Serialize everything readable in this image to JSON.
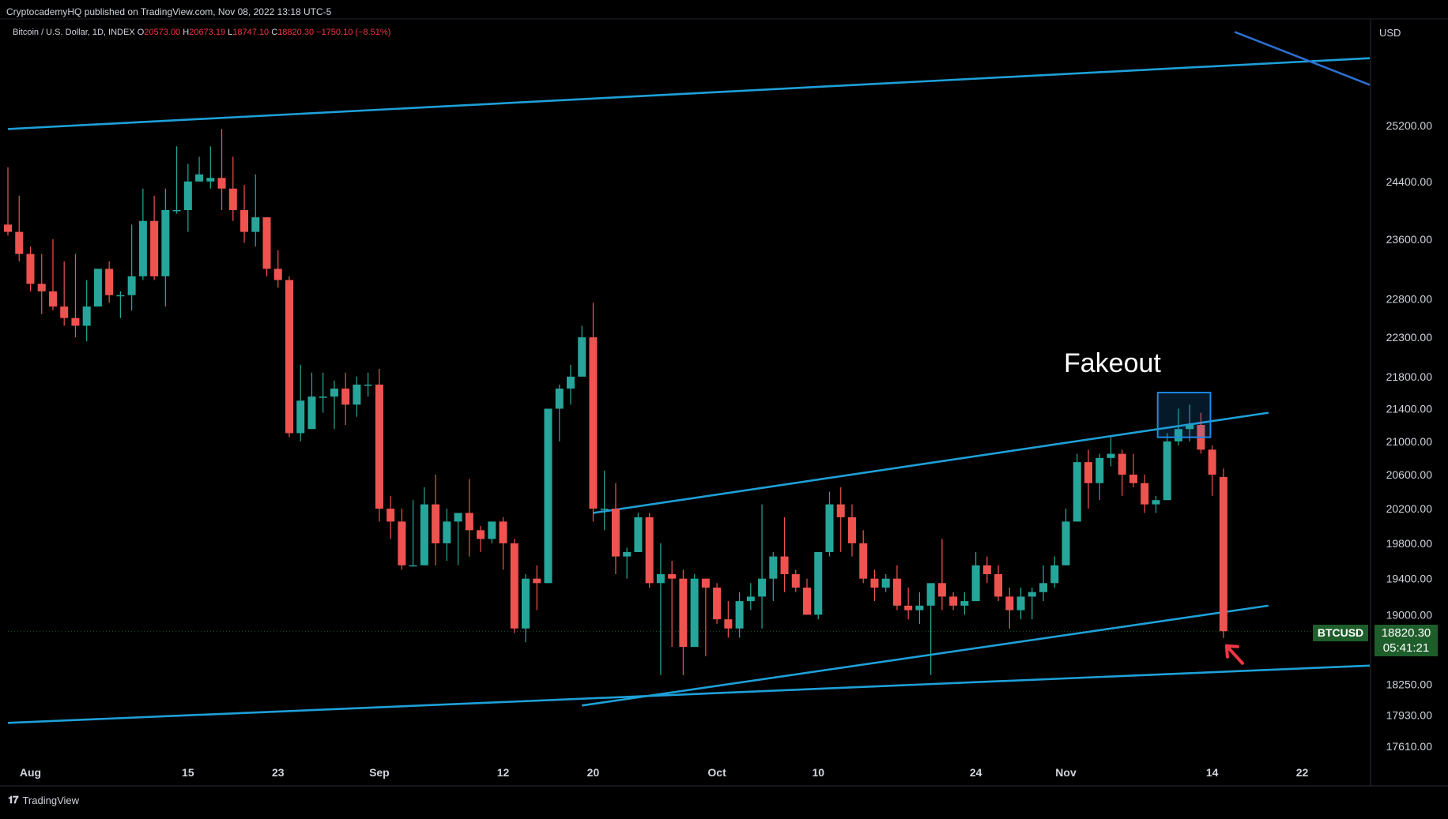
{
  "header": {
    "published": "CryptocademyHQ published on TradingView.com, Nov 08, 2022 13:18 UTC-5",
    "symbol": "Bitcoin / U.S. Dollar, 1D, INDEX",
    "open_label": "O",
    "open": "20573.00",
    "high_label": "H",
    "high": "20673.19",
    "low_label": "L",
    "low": "18747.10",
    "close_label": "C",
    "close": "18820.30",
    "change": "−1750.10 (−8.51%)"
  },
  "price_axis": {
    "currency": "USD"
  },
  "annotation": {
    "fakeout": "Fakeout"
  },
  "last_price": {
    "ticker": "BTCUSD",
    "price": "18820.30",
    "countdown": "05:41:21"
  },
  "footer": {
    "brand": "TradingView",
    "logo_glyph": "𝟏𝟕"
  },
  "colors": {
    "background": "#000000",
    "up": "#26a69a",
    "down": "#ef5350",
    "trendline": "#1ea0d8",
    "secondary_line": "#2e6fd1",
    "highlight_box": "#1e88e5",
    "arrow": "#f23645",
    "axis_text": "#d1d4dc",
    "badge": "#1e5e2a"
  },
  "chart_data": {
    "type": "candlestick",
    "symbol": "BTCUSD",
    "interval": "1D",
    "y_axis_scale": "log",
    "ylim": [
      17450,
      26800
    ],
    "y_ticks": [
      17610,
      17930,
      18250,
      19000,
      19400,
      19800,
      20200,
      20600,
      21000,
      21400,
      21800,
      22300,
      22800,
      23600,
      24400,
      25200
    ],
    "y_tick_labels": [
      "17610.00",
      "17930.00",
      "18250.00",
      "19000.00",
      "19400.00",
      "19800.00",
      "20200.00",
      "20600.00",
      "21000.00",
      "21400.00",
      "21800.00",
      "22300.00",
      "22800.00",
      "23600.00",
      "24400.00",
      "25200.00"
    ],
    "x_ticks": [
      {
        "date": "2022-08-01",
        "label": "Aug"
      },
      {
        "date": "2022-08-15",
        "label": "15"
      },
      {
        "date": "2022-08-23",
        "label": "23"
      },
      {
        "date": "2022-09-01",
        "label": "Sep"
      },
      {
        "date": "2022-09-12",
        "label": "12"
      },
      {
        "date": "2022-09-20",
        "label": "20"
      },
      {
        "date": "2022-10-01",
        "label": "Oct"
      },
      {
        "date": "2022-10-10",
        "label": "10"
      },
      {
        "date": "2022-10-24",
        "label": "24"
      },
      {
        "date": "2022-11-01",
        "label": "Nov"
      },
      {
        "date": "2022-11-14",
        "label": "14"
      },
      {
        "date": "2022-11-22",
        "label": "22"
      }
    ],
    "xlim": [
      "2022-07-30",
      "2022-11-28"
    ],
    "candles": [
      {
        "date": "2022-07-30",
        "open": 23800,
        "high": 24600,
        "low": 23650,
        "close": 23700
      },
      {
        "date": "2022-07-31",
        "open": 23700,
        "high": 24200,
        "low": 23300,
        "close": 23400
      },
      {
        "date": "2022-08-01",
        "open": 23400,
        "high": 23500,
        "low": 22900,
        "close": 23000
      },
      {
        "date": "2022-08-02",
        "open": 23000,
        "high": 23400,
        "low": 22600,
        "close": 22900
      },
      {
        "date": "2022-08-03",
        "open": 22900,
        "high": 23600,
        "low": 22650,
        "close": 22700
      },
      {
        "date": "2022-08-04",
        "open": 22700,
        "high": 23300,
        "low": 22450,
        "close": 22550
      },
      {
        "date": "2022-08-05",
        "open": 22550,
        "high": 23400,
        "low": 22300,
        "close": 22450
      },
      {
        "date": "2022-08-06",
        "open": 22450,
        "high": 23050,
        "low": 22250,
        "close": 22700
      },
      {
        "date": "2022-08-07",
        "open": 22700,
        "high": 23200,
        "low": 22700,
        "close": 23200
      },
      {
        "date": "2022-08-08",
        "open": 23200,
        "high": 23300,
        "low": 22750,
        "close": 22850
      },
      {
        "date": "2022-08-09",
        "open": 22850,
        "high": 22900,
        "low": 22550,
        "close": 22850
      },
      {
        "date": "2022-08-10",
        "open": 22850,
        "high": 23800,
        "low": 22650,
        "close": 23100
      },
      {
        "date": "2022-08-11",
        "open": 23100,
        "high": 24300,
        "low": 23050,
        "close": 23850
      },
      {
        "date": "2022-08-12",
        "open": 23850,
        "high": 24200,
        "low": 23050,
        "close": 23100
      },
      {
        "date": "2022-08-13",
        "open": 23100,
        "high": 24300,
        "low": 22700,
        "close": 24000
      },
      {
        "date": "2022-08-14",
        "open": 24000,
        "high": 24900,
        "low": 23950,
        "close": 24000
      },
      {
        "date": "2022-08-15",
        "open": 24000,
        "high": 24650,
        "low": 23700,
        "close": 24400
      },
      {
        "date": "2022-08-16",
        "open": 24400,
        "high": 24750,
        "low": 24400,
        "close": 24500
      },
      {
        "date": "2022-08-17",
        "open": 24400,
        "high": 24900,
        "low": 24300,
        "close": 24450
      },
      {
        "date": "2022-08-18",
        "open": 24450,
        "high": 25150,
        "low": 24000,
        "close": 24300
      },
      {
        "date": "2022-08-19",
        "open": 24300,
        "high": 24750,
        "low": 23850,
        "close": 24000
      },
      {
        "date": "2022-08-20",
        "open": 24000,
        "high": 24350,
        "low": 23550,
        "close": 23700
      },
      {
        "date": "2022-08-21",
        "open": 23700,
        "high": 24500,
        "low": 23500,
        "close": 23900
      },
      {
        "date": "2022-08-22",
        "open": 23900,
        "high": 23900,
        "low": 23100,
        "close": 23200
      },
      {
        "date": "2022-08-23",
        "open": 23200,
        "high": 23450,
        "low": 22950,
        "close": 23050
      },
      {
        "date": "2022-08-24",
        "open": 23050,
        "high": 23100,
        "low": 21050,
        "close": 21100
      },
      {
        "date": "2022-08-25",
        "open": 21100,
        "high": 21950,
        "low": 21000,
        "close": 21500
      },
      {
        "date": "2022-08-26",
        "open": 21150,
        "high": 21850,
        "low": 21150,
        "close": 21550
      },
      {
        "date": "2022-08-27",
        "open": 21550,
        "high": 21850,
        "low": 21350,
        "close": 21550
      },
      {
        "date": "2022-08-28",
        "open": 21550,
        "high": 21750,
        "low": 21150,
        "close": 21650
      },
      {
        "date": "2022-08-29",
        "open": 21650,
        "high": 21850,
        "low": 21200,
        "close": 21450
      },
      {
        "date": "2022-08-30",
        "open": 21450,
        "high": 21800,
        "low": 21300,
        "close": 21700
      },
      {
        "date": "2022-08-31",
        "open": 21700,
        "high": 21850,
        "low": 21550,
        "close": 21700
      },
      {
        "date": "2022-09-01",
        "open": 21700,
        "high": 21900,
        "low": 20050,
        "close": 20200
      },
      {
        "date": "2022-09-02",
        "open": 20200,
        "high": 20350,
        "low": 19850,
        "close": 20050
      },
      {
        "date": "2022-09-03",
        "open": 20050,
        "high": 20200,
        "low": 19500,
        "close": 19550
      },
      {
        "date": "2022-09-04",
        "open": 19550,
        "high": 20300,
        "low": 19550,
        "close": 19550
      },
      {
        "date": "2022-09-05",
        "open": 19550,
        "high": 20450,
        "low": 19550,
        "close": 20250
      },
      {
        "date": "2022-09-06",
        "open": 20250,
        "high": 20600,
        "low": 19550,
        "close": 19800
      },
      {
        "date": "2022-09-07",
        "open": 19800,
        "high": 20200,
        "low": 19600,
        "close": 20050
      },
      {
        "date": "2022-09-08",
        "open": 20050,
        "high": 20150,
        "low": 19550,
        "close": 20150
      },
      {
        "date": "2022-09-09",
        "open": 20150,
        "high": 20550,
        "low": 19650,
        "close": 19950
      },
      {
        "date": "2022-09-10",
        "open": 19950,
        "high": 20000,
        "low": 19700,
        "close": 19850
      },
      {
        "date": "2022-09-11",
        "open": 19850,
        "high": 20050,
        "low": 19800,
        "close": 20050
      },
      {
        "date": "2022-09-12",
        "open": 20050,
        "high": 20100,
        "low": 19500,
        "close": 19800
      },
      {
        "date": "2022-09-13",
        "open": 19800,
        "high": 19850,
        "low": 18800,
        "close": 18850
      },
      {
        "date": "2022-09-14",
        "open": 18850,
        "high": 19450,
        "low": 18700,
        "close": 19400
      },
      {
        "date": "2022-09-15",
        "open": 19400,
        "high": 19550,
        "low": 19050,
        "close": 19350
      },
      {
        "date": "2022-09-16",
        "open": 19350,
        "high": 21400,
        "low": 19350,
        "close": 21400
      },
      {
        "date": "2022-09-17",
        "open": 21400,
        "high": 21700,
        "low": 21000,
        "close": 21650
      },
      {
        "date": "2022-09-18",
        "open": 21650,
        "high": 21950,
        "low": 21450,
        "close": 21800
      },
      {
        "date": "2022-09-19",
        "open": 21800,
        "high": 22450,
        "low": 21800,
        "close": 22300
      },
      {
        "date": "2022-09-20",
        "open": 22300,
        "high": 22750,
        "low": 20050,
        "close": 20200
      },
      {
        "date": "2022-09-21",
        "open": 20200,
        "high": 20650,
        "low": 19950,
        "close": 20200
      },
      {
        "date": "2022-09-22",
        "open": 20200,
        "high": 20500,
        "low": 19450,
        "close": 19650
      },
      {
        "date": "2022-09-23",
        "open": 19650,
        "high": 19750,
        "low": 19400,
        "close": 19700
      },
      {
        "date": "2022-09-24",
        "open": 19700,
        "high": 20150,
        "low": 19700,
        "close": 20100
      },
      {
        "date": "2022-09-25",
        "open": 20100,
        "high": 20150,
        "low": 19300,
        "close": 19350
      },
      {
        "date": "2022-09-26",
        "open": 19350,
        "high": 19800,
        "low": 18350,
        "close": 19450
      },
      {
        "date": "2022-09-27",
        "open": 19450,
        "high": 19600,
        "low": 18650,
        "close": 19400
      },
      {
        "date": "2022-09-28",
        "open": 19400,
        "high": 19500,
        "low": 18350,
        "close": 18650
      },
      {
        "date": "2022-09-29",
        "open": 18650,
        "high": 19450,
        "low": 18650,
        "close": 19400
      },
      {
        "date": "2022-09-30",
        "open": 19400,
        "high": 19400,
        "low": 18550,
        "close": 19300
      },
      {
        "date": "2022-10-01",
        "open": 19300,
        "high": 19350,
        "low": 18900,
        "close": 18950
      },
      {
        "date": "2022-10-02",
        "open": 18950,
        "high": 19150,
        "low": 18750,
        "close": 18850
      },
      {
        "date": "2022-10-03",
        "open": 18850,
        "high": 19250,
        "low": 18750,
        "close": 19150
      },
      {
        "date": "2022-10-04",
        "open": 19150,
        "high": 19350,
        "low": 19050,
        "close": 19200
      },
      {
        "date": "2022-10-05",
        "open": 19200,
        "high": 20250,
        "low": 18850,
        "close": 19400
      },
      {
        "date": "2022-10-06",
        "open": 19400,
        "high": 19700,
        "low": 19150,
        "close": 19650
      },
      {
        "date": "2022-10-07",
        "open": 19650,
        "high": 20100,
        "low": 19250,
        "close": 19450
      },
      {
        "date": "2022-10-08",
        "open": 19450,
        "high": 19500,
        "low": 19250,
        "close": 19300
      },
      {
        "date": "2022-10-09",
        "open": 19300,
        "high": 19400,
        "low": 19000,
        "close": 19000
      },
      {
        "date": "2022-10-10",
        "open": 19000,
        "high": 19700,
        "low": 18950,
        "close": 19700
      },
      {
        "date": "2022-10-11",
        "open": 19700,
        "high": 20400,
        "low": 19650,
        "close": 20250
      },
      {
        "date": "2022-10-12",
        "open": 20250,
        "high": 20450,
        "low": 19700,
        "close": 20100
      },
      {
        "date": "2022-10-13",
        "open": 20100,
        "high": 20250,
        "low": 19650,
        "close": 19800
      },
      {
        "date": "2022-10-14",
        "open": 19800,
        "high": 19950,
        "low": 19350,
        "close": 19400
      },
      {
        "date": "2022-10-15",
        "open": 19400,
        "high": 19500,
        "low": 19150,
        "close": 19300
      },
      {
        "date": "2022-10-16",
        "open": 19300,
        "high": 19450,
        "low": 19250,
        "close": 19400
      },
      {
        "date": "2022-10-17",
        "open": 19400,
        "high": 19550,
        "low": 19050,
        "close": 19100
      },
      {
        "date": "2022-10-18",
        "open": 19100,
        "high": 19300,
        "low": 18950,
        "close": 19050
      },
      {
        "date": "2022-10-19",
        "open": 19050,
        "high": 19250,
        "low": 18900,
        "close": 19100
      },
      {
        "date": "2022-10-20",
        "open": 19100,
        "high": 19350,
        "low": 18350,
        "close": 19350
      },
      {
        "date": "2022-10-21",
        "open": 19350,
        "high": 19850,
        "low": 19050,
        "close": 19200
      },
      {
        "date": "2022-10-22",
        "open": 19200,
        "high": 19250,
        "low": 19050,
        "close": 19100
      },
      {
        "date": "2022-10-23",
        "open": 19100,
        "high": 19250,
        "low": 19000,
        "close": 19150
      },
      {
        "date": "2022-10-24",
        "open": 19150,
        "high": 19700,
        "low": 19150,
        "close": 19550
      },
      {
        "date": "2022-10-25",
        "open": 19550,
        "high": 19650,
        "low": 19350,
        "close": 19450
      },
      {
        "date": "2022-10-26",
        "open": 19450,
        "high": 19550,
        "low": 19150,
        "close": 19200
      },
      {
        "date": "2022-10-27",
        "open": 19200,
        "high": 19300,
        "low": 18850,
        "close": 19050
      },
      {
        "date": "2022-10-28",
        "open": 19050,
        "high": 19300,
        "low": 18950,
        "close": 19200
      },
      {
        "date": "2022-10-29",
        "open": 19200,
        "high": 19300,
        "low": 18950,
        "close": 19250
      },
      {
        "date": "2022-10-30",
        "open": 19250,
        "high": 19550,
        "low": 19150,
        "close": 19350
      },
      {
        "date": "2022-10-31",
        "open": 19350,
        "high": 19650,
        "low": 19300,
        "close": 19550
      },
      {
        "date": "2022-11-01",
        "open": 19550,
        "high": 20200,
        "low": 19550,
        "close": 20050
      },
      {
        "date": "2022-11-02",
        "open": 20050,
        "high": 20850,
        "low": 20050,
        "close": 20750
      },
      {
        "date": "2022-11-03",
        "open": 20750,
        "high": 20900,
        "low": 20200,
        "close": 20500
      },
      {
        "date": "2022-11-04",
        "open": 20500,
        "high": 20850,
        "low": 20300,
        "close": 20800
      },
      {
        "date": "2022-11-05",
        "open": 20800,
        "high": 21050,
        "low": 20700,
        "close": 20850
      },
      {
        "date": "2022-11-06",
        "open": 20850,
        "high": 20900,
        "low": 20350,
        "close": 20600
      },
      {
        "date": "2022-11-07",
        "open": 20600,
        "high": 20850,
        "low": 20450,
        "close": 20500
      },
      {
        "date": "2022-11-08",
        "open": 20500,
        "high": 20600,
        "low": 20150,
        "close": 20250
      },
      {
        "date": "2022-11-09",
        "open": 20250,
        "high": 20350,
        "low": 20150,
        "close": 20300
      },
      {
        "date": "2022-11-10",
        "open": 20300,
        "high": 21100,
        "low": 20300,
        "close": 21000
      },
      {
        "date": "2022-11-11",
        "open": 21000,
        "high": 21400,
        "low": 20950,
        "close": 21150
      },
      {
        "date": "2022-11-12",
        "open": 21150,
        "high": 21450,
        "low": 21000,
        "close": 21200
      },
      {
        "date": "2022-11-13",
        "open": 21200,
        "high": 21350,
        "low": 20850,
        "close": 20900
      },
      {
        "date": "2022-11-14",
        "open": 20900,
        "high": 20950,
        "low": 20350,
        "close": 20600
      },
      {
        "date": "2022-11-15",
        "open": 20573,
        "high": 20673.19,
        "low": 18747.1,
        "close": 18820.3
      }
    ],
    "trendlines": [
      {
        "name": "upper-long-channel",
        "from": {
          "date": "2022-07-30",
          "price": 25150
        },
        "to": {
          "date": "2022-11-28",
          "price": 26200
        }
      },
      {
        "name": "channel-upper",
        "from": {
          "date": "2022-09-20",
          "price": 20150
        },
        "to": {
          "date": "2022-11-19",
          "price": 21350
        }
      },
      {
        "name": "channel-lower",
        "from": {
          "date": "2022-09-19",
          "price": 18030
        },
        "to": {
          "date": "2022-11-19",
          "price": 19100
        }
      },
      {
        "name": "long-support",
        "from": {
          "date": "2022-07-30",
          "price": 17850
        },
        "to": {
          "date": "2022-11-28",
          "price": 18450
        }
      },
      {
        "name": "descending-line",
        "from": {
          "date": "2022-11-16",
          "price": 26600
        },
        "to": {
          "date": "2022-11-28",
          "price": 25800
        }
      }
    ],
    "highlight_box": {
      "from_date": "2022-11-10",
      "to_date": "2022-11-13",
      "low": 21050,
      "high": 21600
    },
    "annotations": [
      "Fakeout"
    ],
    "current_price": 18820.3,
    "grid": false
  }
}
